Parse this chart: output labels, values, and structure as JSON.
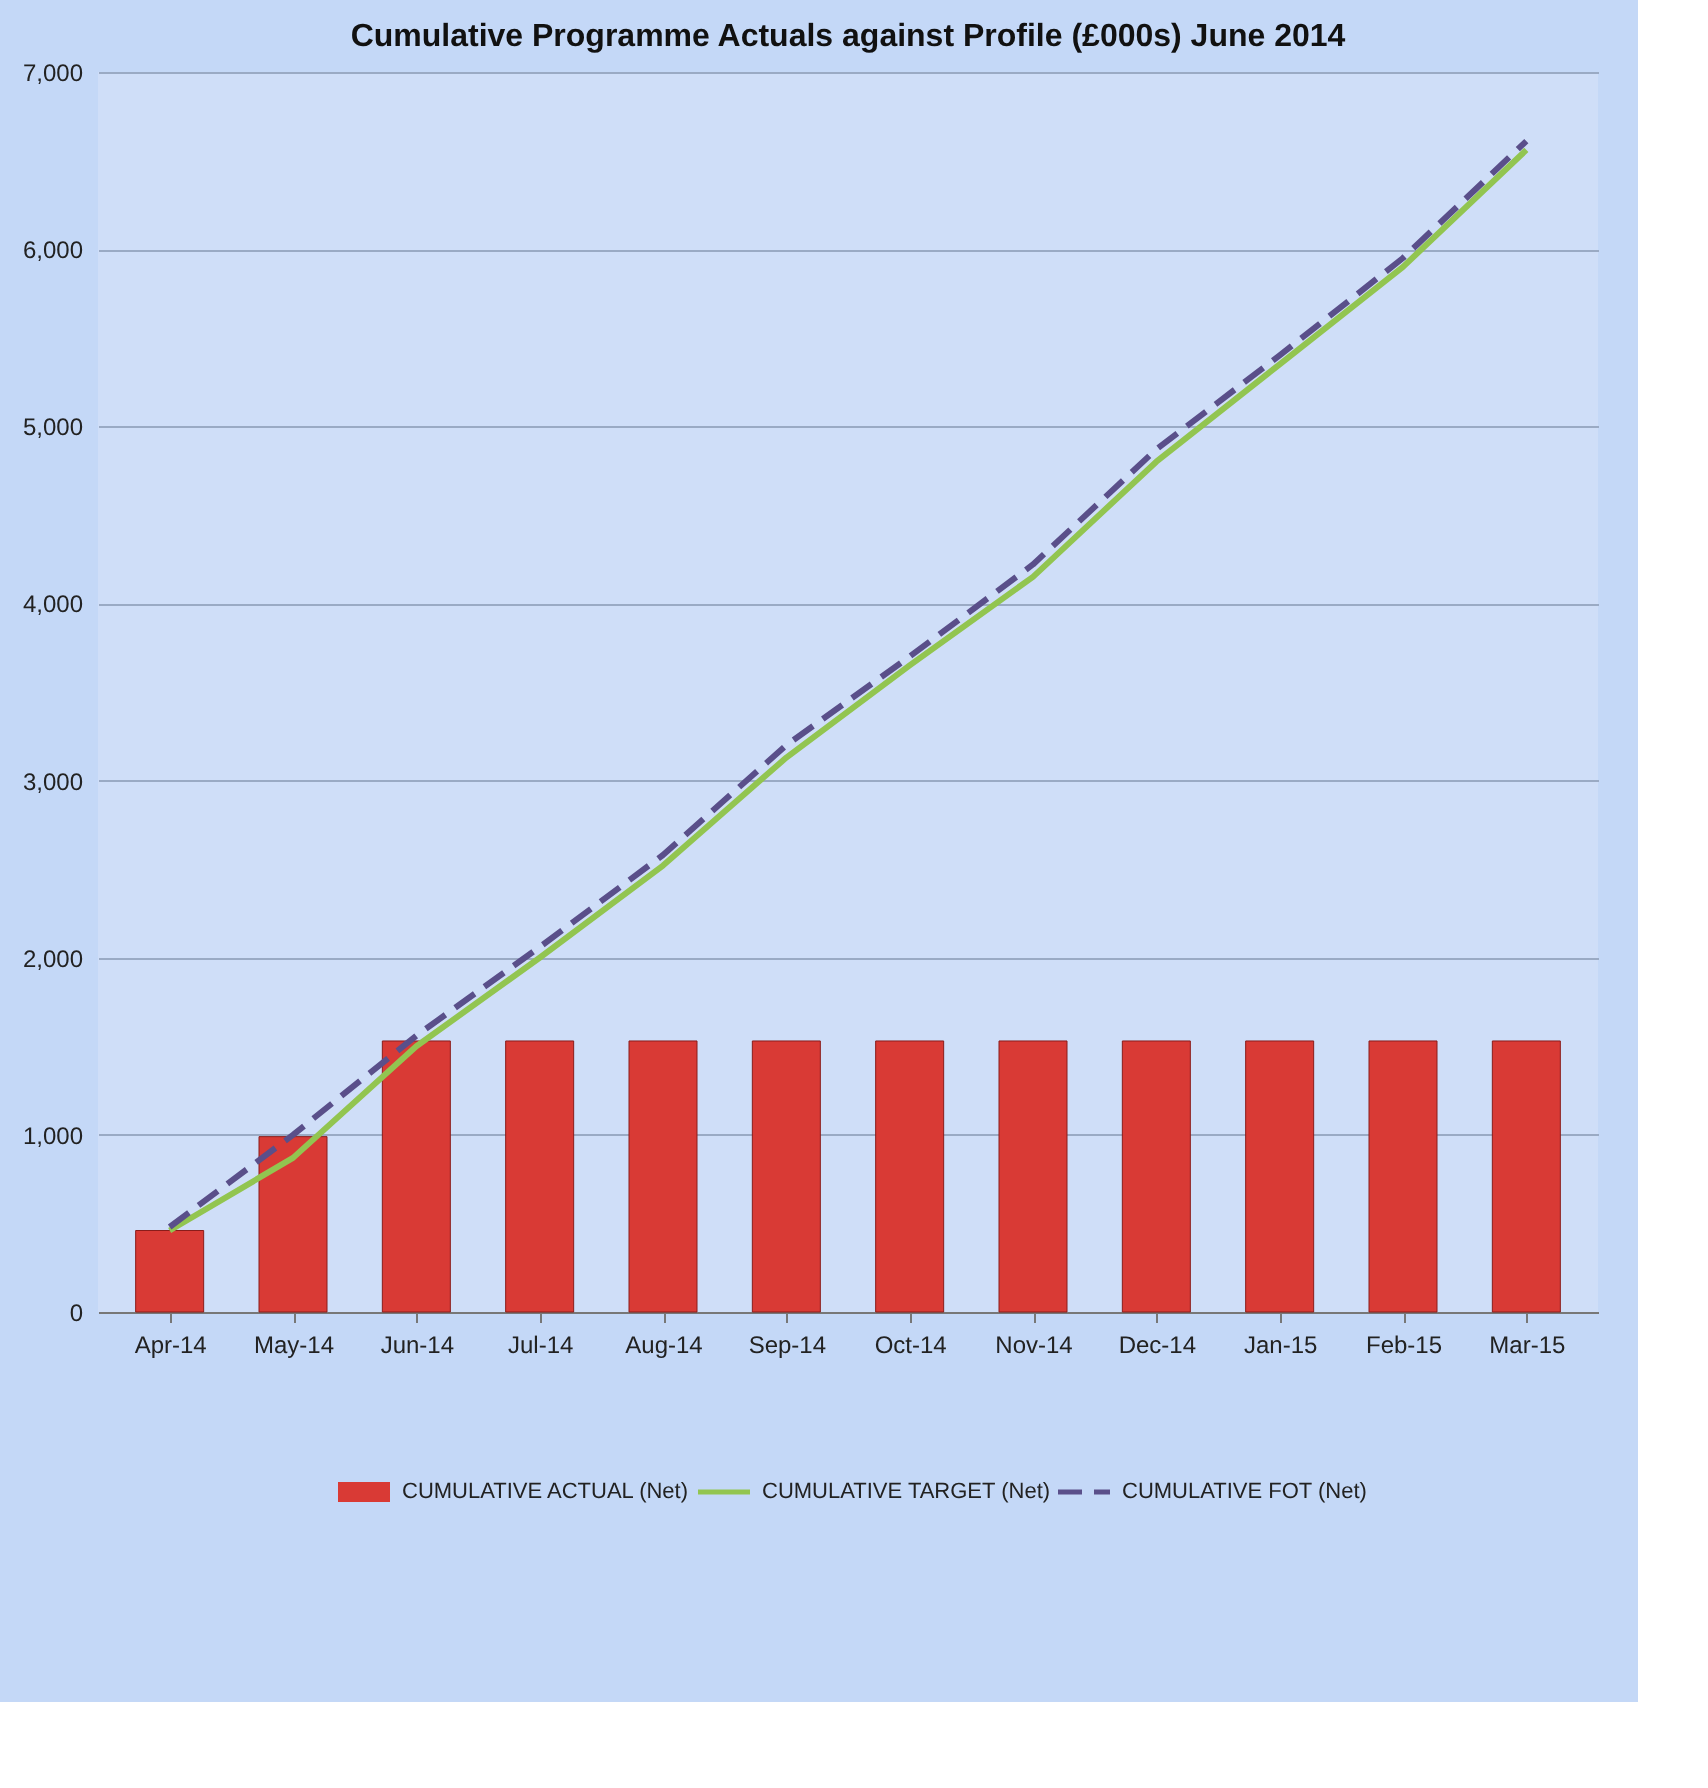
{
  "chart_data": {
    "type": "bar",
    "title": "Cumulative Programme Actuals against Profile (£000s) June 2014",
    "categories": [
      "Apr-14",
      "May-14",
      "Jun-14",
      "Jul-14",
      "Aug-14",
      "Sep-14",
      "Oct-14",
      "Nov-14",
      "Dec-14",
      "Jan-15",
      "Feb-15",
      "Mar-15"
    ],
    "series": [
      {
        "name": "CUMULATIVE ACTUAL (Net)",
        "color": "#d93a35",
        "values": [
          460,
          990,
          1530,
          1530,
          1530,
          1530,
          1530,
          1530,
          1530,
          1530,
          1530,
          1530
        ]
      },
      {
        "name": "CUMULATIVE TARGET (Net)",
        "type": "line",
        "color": "#92c550",
        "line_style": "solid",
        "values": [
          460,
          870,
          1500,
          2000,
          2520,
          3130,
          3650,
          4150,
          4800,
          5350,
          5900,
          6560
        ]
      },
      {
        "name": "CUMULATIVE FOT (Net)",
        "type": "line",
        "color": "#5a4f8a",
        "line_style": "dashed",
        "values": [
          480,
          1000,
          1560,
          2060,
          2580,
          3200,
          3700,
          4220,
          4870,
          5400,
          5950,
          6610
        ]
      }
    ],
    "ylim": [
      0,
      7000
    ],
    "yticks": [
      {
        "value": 0,
        "label": "0"
      },
      {
        "value": 1000,
        "label": "1,000"
      },
      {
        "value": 2000,
        "label": "2,000"
      },
      {
        "value": 3000,
        "label": "3,000"
      },
      {
        "value": 4000,
        "label": "4,000"
      },
      {
        "value": 5000,
        "label": "5,000"
      },
      {
        "value": 6000,
        "label": "6,000"
      },
      {
        "value": 7000,
        "label": "7,000"
      }
    ],
    "grid": "y",
    "legend": "bottom",
    "marker": "none"
  }
}
